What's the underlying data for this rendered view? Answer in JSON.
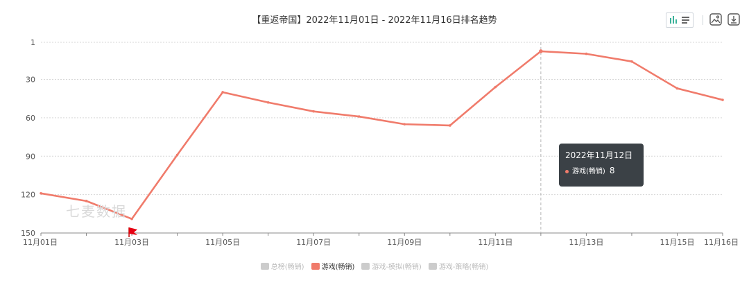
{
  "chart_data": {
    "type": "line",
    "title": "【重返帝国】2022年11月01日 - 2022年11月16日排名趋势",
    "x": [
      "11月01日",
      "11月02日",
      "11月03日",
      "11月04日",
      "11月05日",
      "11月06日",
      "11月07日",
      "11月08日",
      "11月09日",
      "11月10日",
      "11月11日",
      "11月12日",
      "11月13日",
      "11月14日",
      "11月15日",
      "11月16日"
    ],
    "x_tick_labels": [
      "11月01日",
      "11月03日",
      "11月05日",
      "11月07日",
      "11月09日",
      "11月11日",
      "11月13日",
      "11月15日",
      "11月16日"
    ],
    "y_ticks": [
      1,
      30,
      60,
      90,
      120,
      150
    ],
    "ylim": [
      150,
      1
    ],
    "y_inverted": true,
    "grid": true,
    "legend_position": "bottom",
    "series": [
      {
        "name": "游戏(畅销)",
        "color": "#f07b6b",
        "active": true,
        "values": [
          119,
          125,
          139,
          89,
          40,
          48,
          55,
          59,
          65,
          66,
          36,
          8,
          10,
          16,
          37,
          46
        ]
      }
    ],
    "legend": [
      {
        "name": "总榜(畅销)",
        "color": "#cccccc",
        "active": false
      },
      {
        "name": "游戏(畅销)",
        "color": "#f07b6b",
        "active": true
      },
      {
        "name": "游戏-模拟(畅销)",
        "color": "#cccccc",
        "active": false
      },
      {
        "name": "游戏-策略(畅销)",
        "color": "#cccccc",
        "active": false
      }
    ],
    "crosshair_index": 11,
    "marker_index": 2,
    "marker_icon": "red-flag-icon"
  },
  "tooltip": {
    "date": "2022年11月12日",
    "series": "游戏(畅销)",
    "value": "8",
    "color": "#f07b6b"
  },
  "watermark": "七麦数据",
  "toolbar": {
    "chart_icon": "bar-line-toggle-icon",
    "image_icon": "save-image-icon",
    "download_icon": "download-icon"
  }
}
